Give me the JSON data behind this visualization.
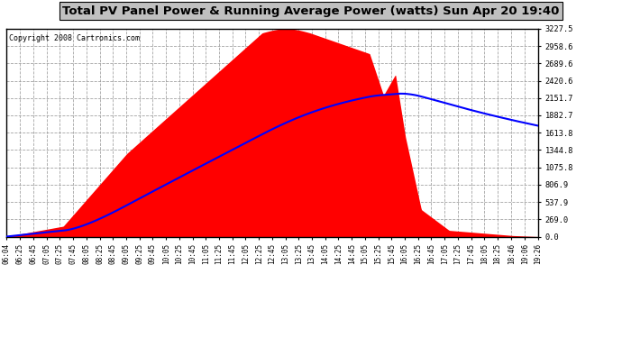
{
  "title": "Total PV Panel Power & Running Average Power (watts) Sun Apr 20 19:40",
  "copyright": "Copyright 2008 Cartronics.com",
  "yticks": [
    0.0,
    269.0,
    537.9,
    806.9,
    1075.8,
    1344.8,
    1613.8,
    1882.7,
    2151.7,
    2420.6,
    2689.6,
    2958.6,
    3227.5
  ],
  "ymax": 3227.5,
  "ymin": 0.0,
  "xtick_labels": [
    "06:04",
    "06:25",
    "06:45",
    "07:05",
    "07:25",
    "07:45",
    "08:05",
    "08:25",
    "08:45",
    "09:05",
    "09:25",
    "09:45",
    "10:05",
    "10:25",
    "10:45",
    "11:05",
    "11:25",
    "11:45",
    "12:05",
    "12:25",
    "12:45",
    "13:05",
    "13:25",
    "13:45",
    "14:05",
    "14:25",
    "14:45",
    "15:05",
    "15:25",
    "15:45",
    "16:05",
    "16:25",
    "16:45",
    "17:05",
    "17:25",
    "17:45",
    "18:05",
    "18:25",
    "18:46",
    "19:06",
    "19:26"
  ],
  "bg_color": "#ffffff",
  "fill_color": "#ff0000",
  "line_color": "#0000ff",
  "title_bg": "#c0c0c0",
  "border_color": "#000000"
}
